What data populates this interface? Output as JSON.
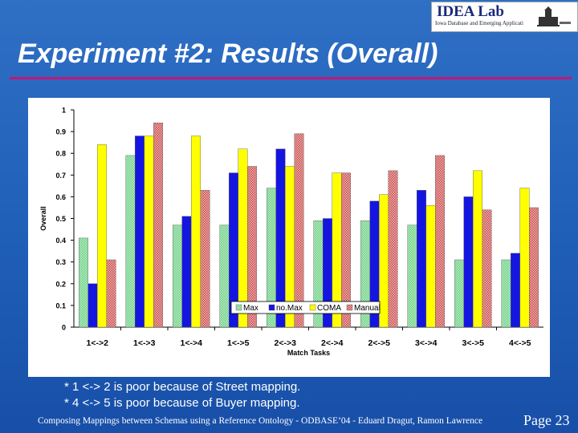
{
  "header": {
    "logo_title": "IDEA Lab",
    "logo_subtitle": "Iowa Database and Emerging Applications Lab",
    "slide_title": "Experiment #2: Results (Overall)"
  },
  "colors": {
    "background": "#1f5fb8",
    "title_rule": "#c2187a",
    "series": [
      "#99e0a8",
      "#1515e0",
      "#ffff00",
      "#e07a7a"
    ]
  },
  "chart_data": {
    "type": "bar",
    "title": "",
    "xlabel": "Match Tasks",
    "ylabel": "Overall",
    "ylim": [
      0,
      1
    ],
    "yticks": [
      "0",
      "0.1",
      "0.2",
      "0.3",
      "0.4",
      "0.5",
      "0.6",
      "0.7",
      "0.8",
      "0.9",
      "1"
    ],
    "categories": [
      "1<->2",
      "1<->3",
      "1<->4",
      "1<->5",
      "2<->3",
      "2<->4",
      "2<->5",
      "3<->4",
      "3<->5",
      "4<->5"
    ],
    "series": [
      {
        "name": "Max",
        "values": [
          0.41,
          0.79,
          0.47,
          0.47,
          0.64,
          0.49,
          0.49,
          0.47,
          0.31,
          0.31
        ]
      },
      {
        "name": "no.Max",
        "values": [
          0.2,
          0.88,
          0.51,
          0.71,
          0.82,
          0.5,
          0.58,
          0.63,
          0.6,
          0.34
        ]
      },
      {
        "name": "COMA",
        "values": [
          0.84,
          0.88,
          0.88,
          0.82,
          0.74,
          0.71,
          0.61,
          0.56,
          0.72,
          0.64
        ]
      },
      {
        "name": "Manual",
        "values": [
          0.31,
          0.94,
          0.63,
          0.74,
          0.89,
          0.71,
          0.72,
          0.79,
          0.54,
          0.55
        ]
      }
    ],
    "grid": false,
    "legend_position": "bottom-center-inside"
  },
  "notes": [
    "* 1 <-> 2 is poor because of Street mapping.",
    "* 4 <-> 5 is poor because of Buyer mapping."
  ],
  "footer": {
    "text": "Composing Mappings between Schemas using a Reference Ontology - ODBASE’04 -  Eduard Dragut, Ramon Lawrence",
    "page": "Page 23"
  }
}
